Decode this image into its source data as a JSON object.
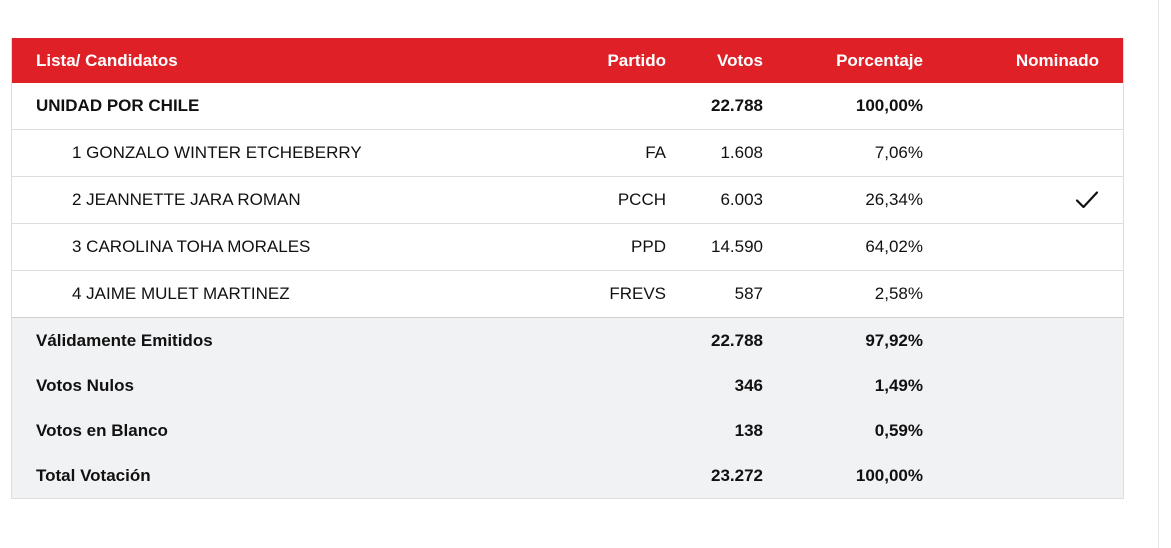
{
  "header": {
    "name": "Lista/ Candidatos",
    "party": "Partido",
    "votes": "Votos",
    "percent": "Porcentaje",
    "nominated": "Nominado"
  },
  "list": {
    "name": "UNIDAD POR CHILE",
    "votes": "22.788",
    "percent": "100,00%"
  },
  "candidates": [
    {
      "name": "1 GONZALO WINTER ETCHEBERRY",
      "party": "FA",
      "votes": "1.608",
      "percent": "7,06%",
      "nominated": false
    },
    {
      "name": "2 JEANNETTE JARA ROMAN",
      "party": "PCCH",
      "votes": "6.003",
      "percent": "26,34%",
      "nominated": true
    },
    {
      "name": "3 CAROLINA TOHA MORALES",
      "party": "PPD",
      "votes": "14.590",
      "percent": "64,02%",
      "nominated": false
    },
    {
      "name": "4 JAIME MULET MARTINEZ",
      "party": "FREVS",
      "votes": "587",
      "percent": "2,58%",
      "nominated": false
    }
  ],
  "summary": [
    {
      "label": "Válidamente Emitidos",
      "votes": "22.788",
      "percent": "97,92%"
    },
    {
      "label": "Votos Nulos",
      "votes": "346",
      "percent": "1,49%"
    },
    {
      "label": "Votos en Blanco",
      "votes": "138",
      "percent": "0,59%"
    },
    {
      "label": "Total Votación",
      "votes": "23.272",
      "percent": "100,00%"
    }
  ],
  "icons": {
    "nominated": "checkmark-icon"
  },
  "colors": {
    "header_bg": "#df2127",
    "header_text": "#ffffff",
    "summary_bg": "#f1f2f4",
    "row_border": "#dedede"
  }
}
